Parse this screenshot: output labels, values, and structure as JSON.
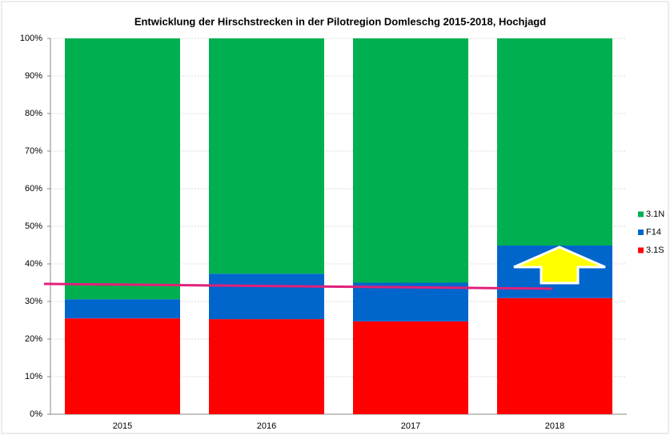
{
  "chart_data": {
    "type": "stacked_bar",
    "title": "Entwicklung der Hirschstrecken in der Pilotregion Domleschg 2015-2018, Hochjagd",
    "categories": [
      "2015",
      "2016",
      "2017",
      "2018"
    ],
    "series": [
      {
        "name": "3.1S",
        "color": "#ff0000",
        "values": [
          25.5,
          25.3,
          24.7,
          30.9
        ]
      },
      {
        "name": "F14",
        "color": "#0066cc",
        "values": [
          5.1,
          12.1,
          10.3,
          14.0
        ]
      },
      {
        "name": "3.1N",
        "color": "#00b050",
        "values": [
          69.4,
          62.6,
          65.0,
          55.1
        ]
      }
    ],
    "ylim": [
      0,
      100
    ],
    "yticks": [
      {
        "value": 0,
        "label": "0%"
      },
      {
        "value": 10,
        "label": "10%"
      },
      {
        "value": 20,
        "label": "20%"
      },
      {
        "value": 30,
        "label": "30%"
      },
      {
        "value": 40,
        "label": "40%"
      },
      {
        "value": 50,
        "label": "50%"
      },
      {
        "value": 60,
        "label": "60%"
      },
      {
        "value": 70,
        "label": "70%"
      },
      {
        "value": 80,
        "label": "80%"
      },
      {
        "value": 90,
        "label": "90%"
      },
      {
        "value": 100,
        "label": "100%"
      }
    ],
    "grid": true,
    "legend": "right"
  }
}
